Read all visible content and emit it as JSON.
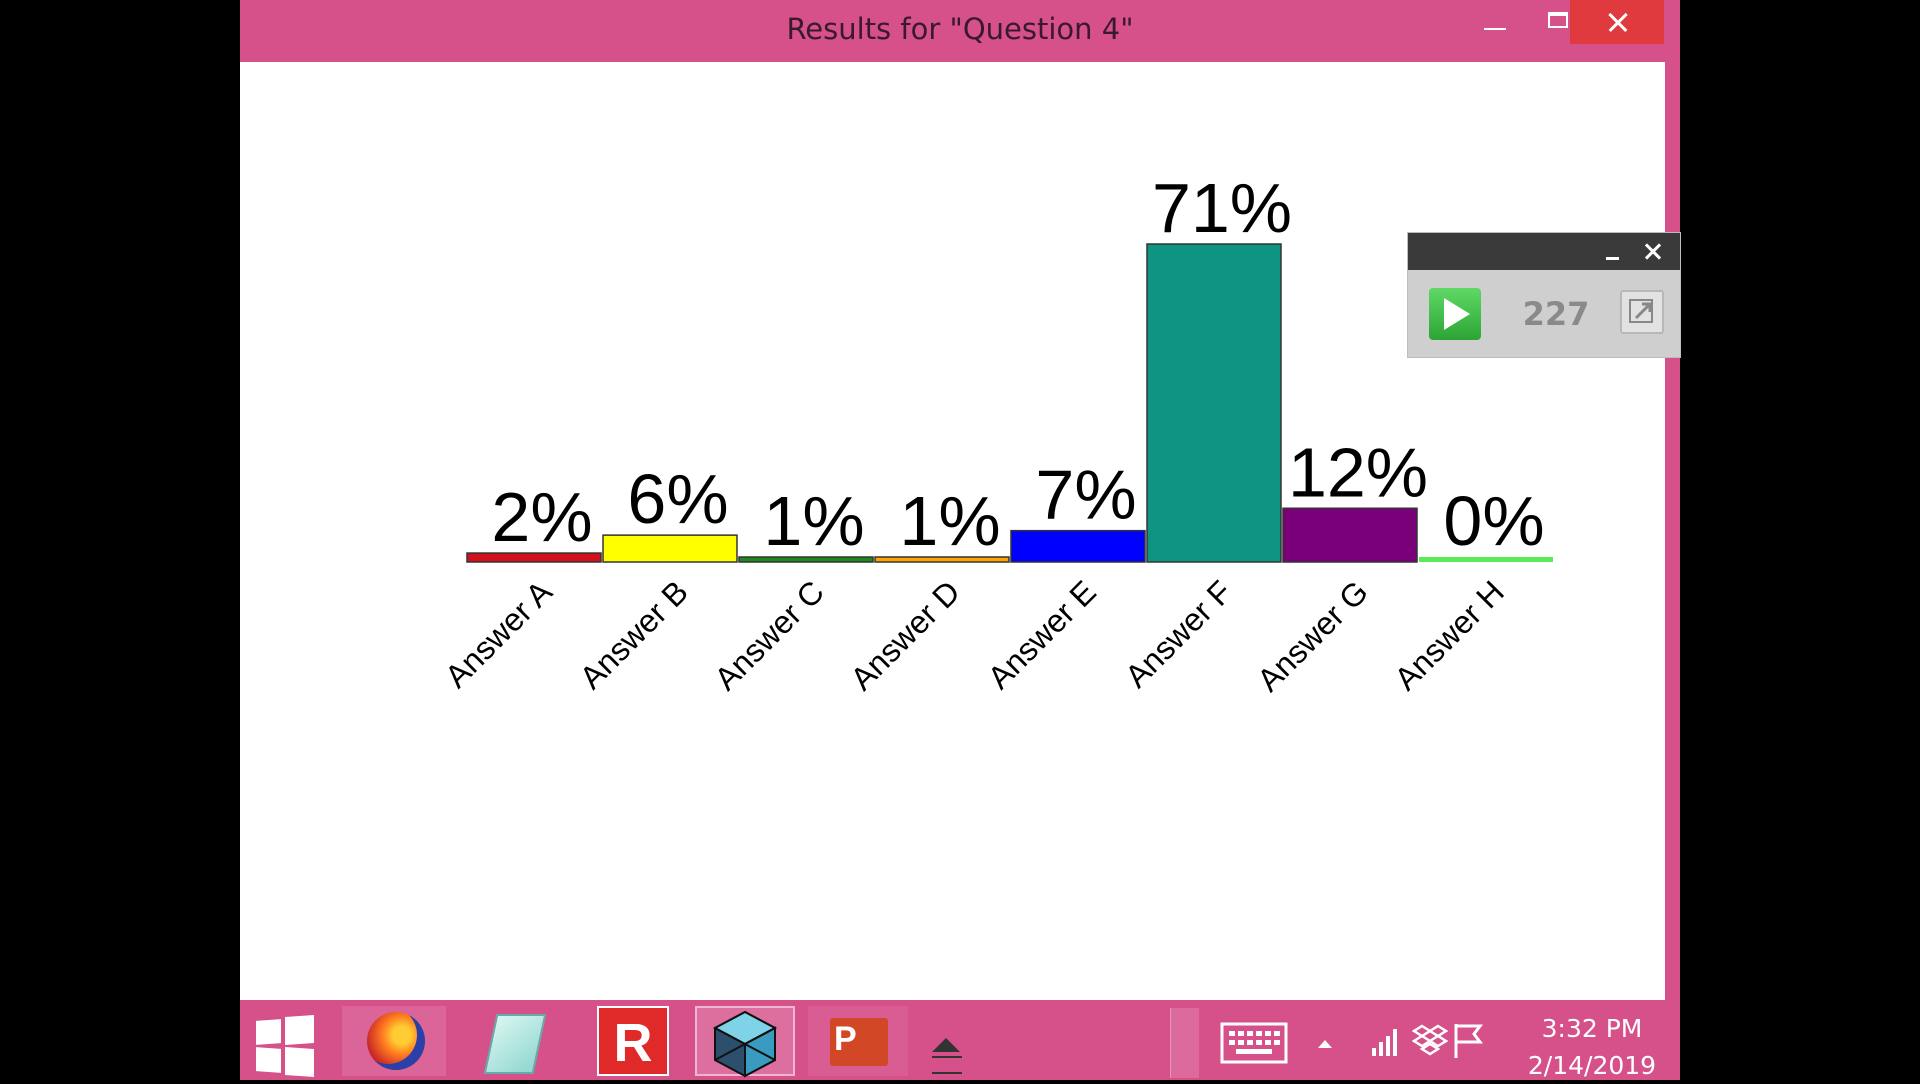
{
  "window": {
    "title": "Results for \"Question 4\""
  },
  "chart_data": {
    "type": "bar",
    "categories": [
      "Answer A",
      "Answer B",
      "Answer C",
      "Answer D",
      "Answer E",
      "Answer F",
      "Answer G",
      "Answer H"
    ],
    "values": [
      2,
      6,
      1,
      1,
      7,
      71,
      12,
      0
    ],
    "value_labels": [
      "2%",
      "6%",
      "1%",
      "1%",
      "7%",
      "71%",
      "12%",
      "0%"
    ],
    "colors": [
      "#d0101a",
      "#ffff00",
      "#1d8a1d",
      "#ffa500",
      "#0000ff",
      "#109482",
      "#7a007a",
      "#5dea58"
    ],
    "ylim": [
      0,
      71
    ],
    "gridlines": false,
    "xlabel": "",
    "ylabel": ""
  },
  "response_widget": {
    "count": "227",
    "icons": [
      "play-icon",
      "minimize-icon",
      "close-icon",
      "popout-icon"
    ]
  },
  "taskbar": {
    "apps": [
      "start",
      "firefox",
      "notepad",
      "r-app",
      "cube-app",
      "powerpoint"
    ],
    "time": "3:32 PM",
    "date": "2/14/2019"
  }
}
